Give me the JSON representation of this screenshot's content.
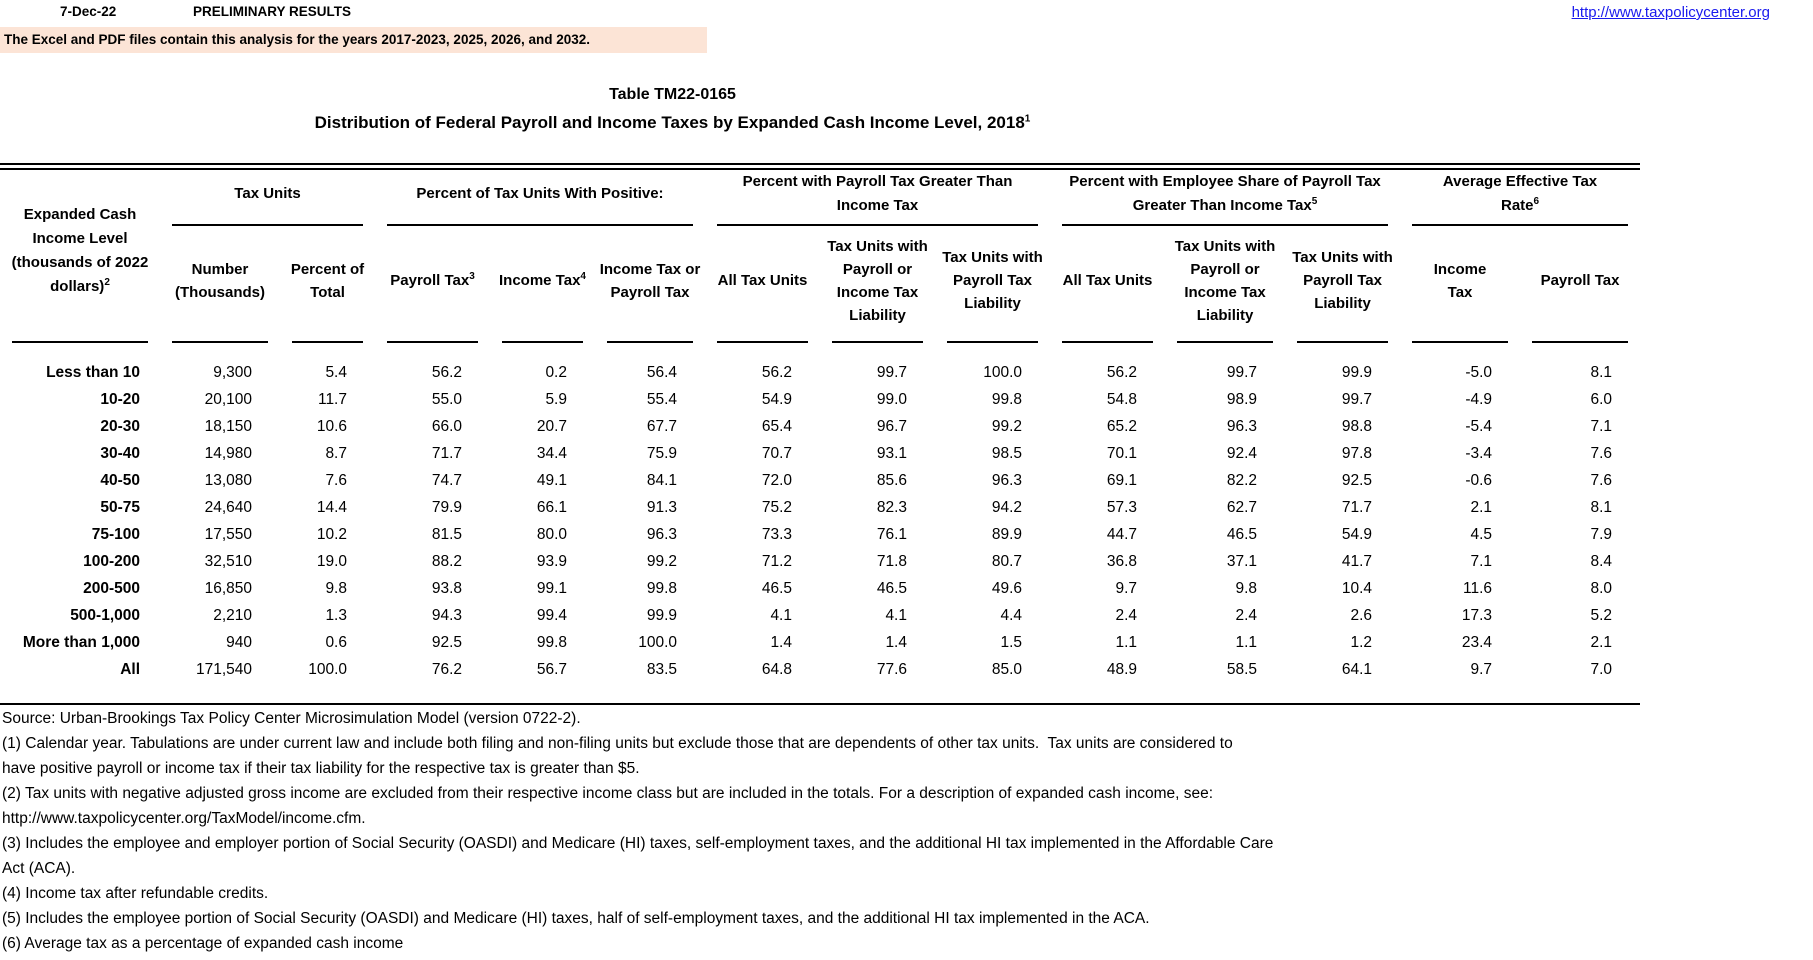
{
  "header_bar": {
    "date": "7-Dec-22",
    "status": "PRELIMINARY RESULTS",
    "link": "http://www.taxpolicycenter.org"
  },
  "banner": {
    "text": "The Excel and PDF files contain this analysis for the years 2017-2023, 2025, 2026, and 2032.",
    "background": "#fce4d6"
  },
  "title": {
    "line1": "Table TM22-0165",
    "line2": "Distribution of Federal Payroll and Income Taxes by Expanded Cash Income Level, 2018",
    "line2_sup": "1"
  },
  "table": {
    "row_header": {
      "label": "Expanded Cash Income Level (thousands of 2022 dollars)",
      "sup": "2"
    },
    "groups": [
      {
        "label": "Tax Units",
        "sup": "",
        "columns": [
          {
            "label": "Number (Thousands)",
            "sup": ""
          },
          {
            "label": "Percent of Total",
            "sup": ""
          }
        ]
      },
      {
        "label": "Percent of Tax Units With Positive:",
        "sup": "",
        "columns": [
          {
            "label": "Payroll Tax",
            "sup": "3"
          },
          {
            "label": "Income Tax",
            "sup": "4"
          },
          {
            "label": "Income Tax or Payroll Tax",
            "sup": ""
          }
        ]
      },
      {
        "label": "Percent with Payroll Tax Greater Than Income Tax",
        "sup": "",
        "columns": [
          {
            "label": "All Tax Units",
            "sup": ""
          },
          {
            "label": "Tax Units with Payroll or Income Tax Liability",
            "sup": ""
          },
          {
            "label": "Tax Units with Payroll Tax Liability",
            "sup": ""
          }
        ]
      },
      {
        "label": "Percent with Employee Share of Payroll Tax Greater Than Income Tax",
        "sup": "5",
        "columns": [
          {
            "label": "All Tax Units",
            "sup": ""
          },
          {
            "label": "Tax Units with Payroll or Income Tax Liability",
            "sup": ""
          },
          {
            "label": "Tax Units with Payroll Tax Liability",
            "sup": ""
          }
        ]
      },
      {
        "label": "Average Effective Tax Rate",
        "sup": "6",
        "columns": [
          {
            "label": "Income Tax",
            "sup": ""
          },
          {
            "label": "Payroll Tax",
            "sup": ""
          }
        ]
      }
    ],
    "rows": [
      {
        "label": "Less than 10",
        "values": [
          "9,300",
          "5.4",
          "56.2",
          "0.2",
          "56.4",
          "56.2",
          "99.7",
          "100.0",
          "56.2",
          "99.7",
          "99.9",
          "-5.0",
          "8.1"
        ]
      },
      {
        "label": "10-20",
        "values": [
          "20,100",
          "11.7",
          "55.0",
          "5.9",
          "55.4",
          "54.9",
          "99.0",
          "99.8",
          "54.8",
          "98.9",
          "99.7",
          "-4.9",
          "6.0"
        ]
      },
      {
        "label": "20-30",
        "values": [
          "18,150",
          "10.6",
          "66.0",
          "20.7",
          "67.7",
          "65.4",
          "96.7",
          "99.2",
          "65.2",
          "96.3",
          "98.8",
          "-5.4",
          "7.1"
        ]
      },
      {
        "label": "30-40",
        "values": [
          "14,980",
          "8.7",
          "71.7",
          "34.4",
          "75.9",
          "70.7",
          "93.1",
          "98.5",
          "70.1",
          "92.4",
          "97.8",
          "-3.4",
          "7.6"
        ]
      },
      {
        "label": "40-50",
        "values": [
          "13,080",
          "7.6",
          "74.7",
          "49.1",
          "84.1",
          "72.0",
          "85.6",
          "96.3",
          "69.1",
          "82.2",
          "92.5",
          "-0.6",
          "7.6"
        ]
      },
      {
        "label": "50-75",
        "values": [
          "24,640",
          "14.4",
          "79.9",
          "66.1",
          "91.3",
          "75.2",
          "82.3",
          "94.2",
          "57.3",
          "62.7",
          "71.7",
          "2.1",
          "8.1"
        ]
      },
      {
        "label": "75-100",
        "values": [
          "17,550",
          "10.2",
          "81.5",
          "80.0",
          "96.3",
          "73.3",
          "76.1",
          "89.9",
          "44.7",
          "46.5",
          "54.9",
          "4.5",
          "7.9"
        ]
      },
      {
        "label": "100-200",
        "values": [
          "32,510",
          "19.0",
          "88.2",
          "93.9",
          "99.2",
          "71.2",
          "71.8",
          "80.7",
          "36.8",
          "37.1",
          "41.7",
          "7.1",
          "8.4"
        ]
      },
      {
        "label": "200-500",
        "values": [
          "16,850",
          "9.8",
          "93.8",
          "99.1",
          "99.8",
          "46.5",
          "46.5",
          "49.6",
          "9.7",
          "9.8",
          "10.4",
          "11.6",
          "8.0"
        ]
      },
      {
        "label": "500-1,000",
        "values": [
          "2,210",
          "1.3",
          "94.3",
          "99.4",
          "99.9",
          "4.1",
          "4.1",
          "4.4",
          "2.4",
          "2.4",
          "2.6",
          "17.3",
          "5.2"
        ]
      },
      {
        "label": "More than 1,000",
        "values": [
          "940",
          "0.6",
          "92.5",
          "99.8",
          "100.0",
          "1.4",
          "1.4",
          "1.5",
          "1.1",
          "1.1",
          "1.2",
          "23.4",
          "2.1"
        ]
      },
      {
        "label": "All",
        "values": [
          "171,540",
          "100.0",
          "76.2",
          "56.7",
          "83.5",
          "64.8",
          "77.6",
          "85.0",
          "48.9",
          "58.5",
          "64.1",
          "9.7",
          "7.0"
        ]
      }
    ]
  },
  "footnotes": {
    "lines": [
      "Source: Urban-Brookings Tax Policy Center Microsimulation Model (version 0722-2).",
      "(1) Calendar year. Tabulations are under current law and include both filing and non-filing units but exclude those that are dependents of other tax units.  Tax units are considered to",
      "have positive payroll or income tax if their tax liability for the respective tax is greater than $5.",
      "(2) Tax units with negative adjusted gross income are excluded from their respective income class but are included in the totals. For a description of expanded cash income, see:",
      "http://www.taxpolicycenter.org/TaxModel/income.cfm.",
      "(3) Includes the employee and employer portion of Social Security (OASDI) and Medicare (HI) taxes, self-employment taxes, and the additional HI tax implemented in the Affordable Care",
      "Act (ACA).",
      "(4) Income tax after refundable credits.",
      "(5) Includes the employee portion of Social Security (OASDI) and Medicare (HI) taxes, half of self-employment taxes, and the additional HI tax implemented in the ACA.",
      "(6) Average tax as a percentage of expanded cash income"
    ]
  }
}
